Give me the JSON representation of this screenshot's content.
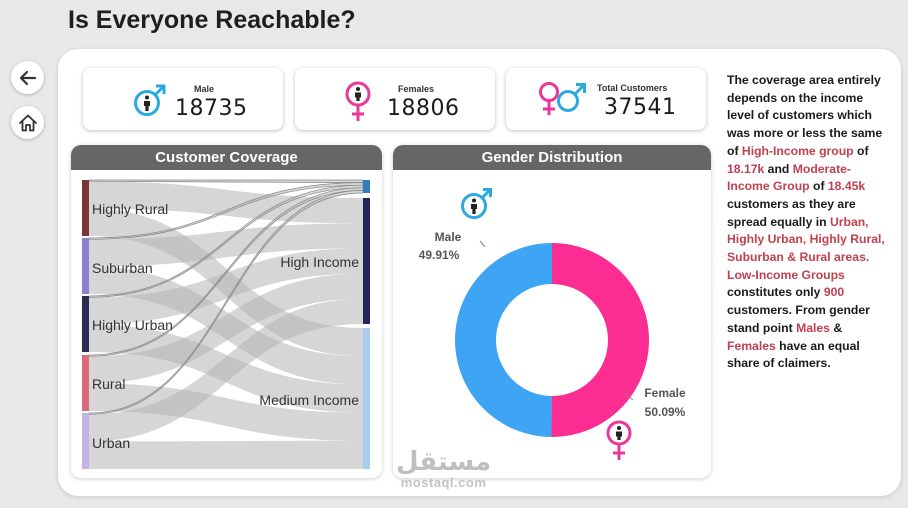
{
  "header": {
    "title": "Is Everyone Reachable?"
  },
  "nav": {
    "back_icon": "arrow-left-icon",
    "home_icon": "home-icon"
  },
  "kpis": {
    "male": {
      "label": "Male",
      "value": "18735",
      "icon": "male-symbol-icon",
      "color": "#2aa9e0"
    },
    "female": {
      "label": "Females",
      "value": "18806",
      "icon": "female-symbol-icon",
      "color": "#e8389a"
    },
    "total": {
      "label": "Total Customers",
      "value": "37541",
      "icon": "gender-symbols-icon"
    }
  },
  "coverage": {
    "title": "Customer Coverage",
    "sources": [
      {
        "label": "Highly Rural",
        "color": "#7b3333"
      },
      {
        "label": "Suburban",
        "color": "#8f7fd0"
      },
      {
        "label": "Highly Urban",
        "color": "#2c2c55"
      },
      {
        "label": "Rural",
        "color": "#d86a7c"
      },
      {
        "label": "Urban",
        "color": "#c6b3e3"
      }
    ],
    "targets": [
      {
        "label": "",
        "color": "#2f7cc1"
      },
      {
        "label": "High Income",
        "color": "#20265a"
      },
      {
        "label": "Medium Income",
        "color": "#a8cdf1"
      }
    ]
  },
  "gender": {
    "title": "Gender Distribution",
    "male_label": "Male",
    "male_pct": "49.91%",
    "male_value": 49.91,
    "female_label": "Female",
    "female_pct": "50.09%",
    "female_value": 50.09,
    "male_color": "#3da5f4",
    "female_color": "#fb2d92"
  },
  "description": {
    "p1": "The coverage area entirely depends on the income level of customers which was more or less the same of ",
    "hl1": "High-Income group",
    "p2": " of ",
    "hl2": "18.17k",
    "p3": " and ",
    "hl3": "Moderate-Income Group",
    "p4": " of ",
    "hl4": "18.45k",
    "p5": " customers as they are spread equally in ",
    "hl5": "Urban, Highly Urban, Highly Rural, Suburban & Rural areas. Low-Income Groups",
    "p6": " constitutes only ",
    "hl6": "900",
    "p7": " customers. From gender stand point ",
    "hl7": "Males",
    "p8": " & ",
    "hl8": "Females",
    "p9": " have an equal share of claimers."
  },
  "watermark": {
    "brand": "مستقل",
    "site": "mostaql.com"
  }
}
